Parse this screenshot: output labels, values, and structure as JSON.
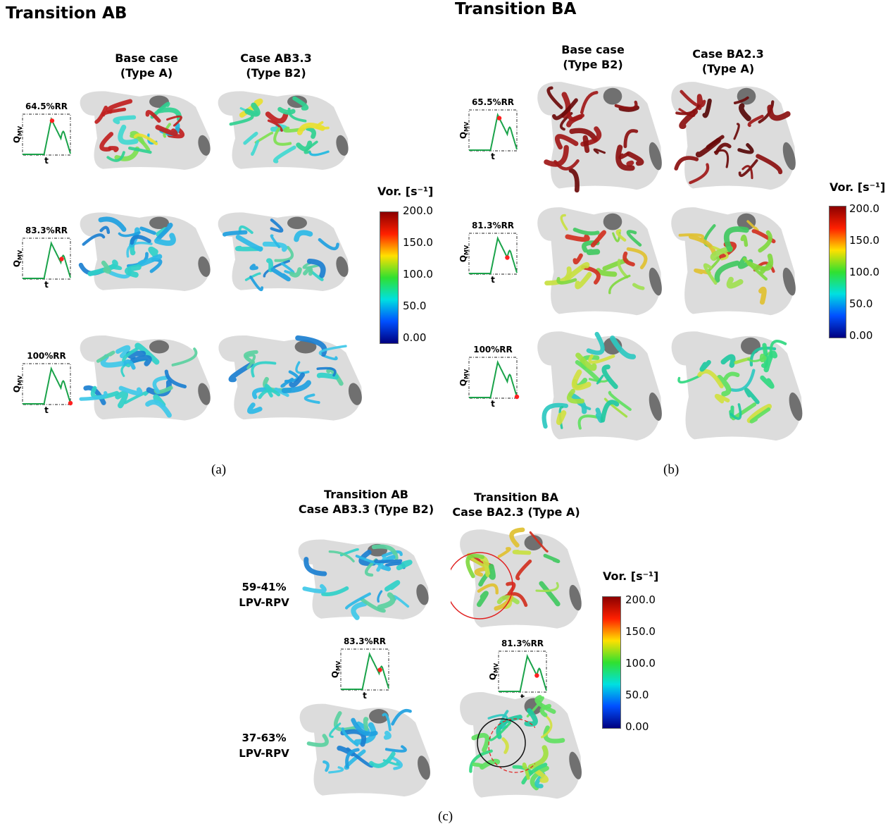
{
  "panel_a": {
    "title": "Transition AB",
    "col1": {
      "line1": "Base case",
      "line2": "(Type A)"
    },
    "col2": {
      "line1": "Case AB3.3",
      "line2": "(Type B2)"
    },
    "rows": [
      {
        "rr": "64.5%RR",
        "marker": 0.62
      },
      {
        "rr": "83.3%RR",
        "marker": 0.82
      },
      {
        "rr": "100%RR",
        "marker": 1.0
      }
    ],
    "caption": "(a)"
  },
  "panel_b": {
    "title": "Transition BA",
    "col1": {
      "line1": "Base case",
      "line2": "(Type B2)"
    },
    "col2": {
      "line1": "Case BA2.3",
      "line2": "(Type A)"
    },
    "rows": [
      {
        "rr": "65.5%RR",
        "marker": 0.63
      },
      {
        "rr": "81.3%RR",
        "marker": 0.8
      },
      {
        "rr": "100%RR",
        "marker": 1.0
      }
    ],
    "caption": "(b)"
  },
  "panel_c": {
    "col1": {
      "line1": "Transition AB",
      "line2": "Case AB3.3 (Type B2)"
    },
    "col2": {
      "line1": "Transition BA",
      "line2": "Case BA2.3 (Type A)"
    },
    "row1": {
      "line1": "59-41%",
      "line2": "LPV-RPV"
    },
    "row2": {
      "line1": "37-63%",
      "line2": "LPV-RPV"
    },
    "plot1": {
      "rr": "83.3%RR",
      "marker": 0.82
    },
    "plot2": {
      "rr": "81.3%RR",
      "marker": 0.8
    },
    "caption": "(c)"
  },
  "colorbar": {
    "title": "Vor. [s⁻¹]",
    "ticks": [
      "200.0",
      "150.0",
      "100.0",
      "50.0",
      "0.00"
    ],
    "colors": [
      "#8b0000",
      "#ff2000",
      "#ffe000",
      "#30e030",
      "#00e0e0",
      "#0050ff",
      "#000080"
    ]
  },
  "mini_plot": {
    "ylabel": "Q",
    "ysub": "MV",
    "xlabel": "t",
    "line_color": "#1aa34a",
    "marker_color": "#ff2020"
  },
  "colors": {
    "atrium": "#dcdcdc",
    "pv": "#707070"
  }
}
